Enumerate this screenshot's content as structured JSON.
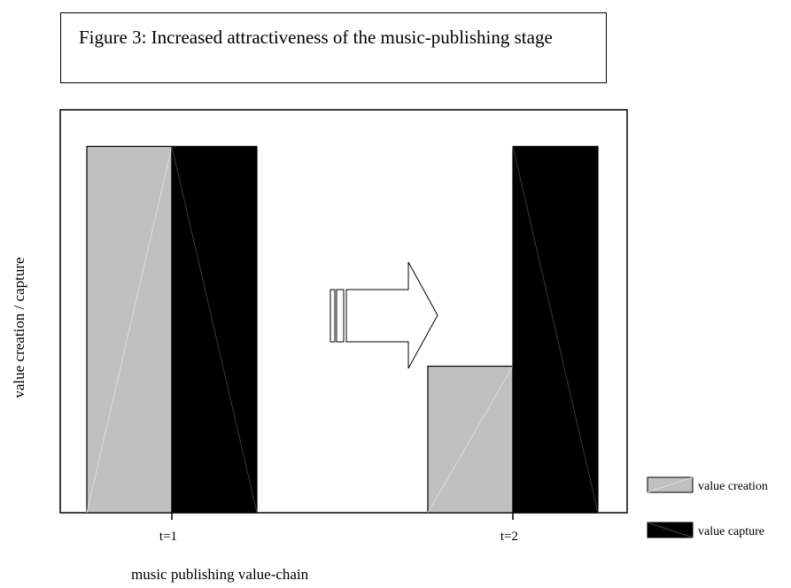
{
  "title": "Figure 3: Increased attractiveness of the music-publishing stage",
  "chart_data": {
    "type": "bar",
    "categories": [
      "t=1",
      "t=2"
    ],
    "series": [
      {
        "name": "value creation",
        "values": [
          100,
          40
        ],
        "color": "#c0c0c0"
      },
      {
        "name": "value capture",
        "values": [
          100,
          100
        ],
        "color": "#000000"
      }
    ],
    "ylabel": "value creation / capture",
    "xlabel": "music publishing value-chain",
    "ylim": [
      0,
      110
    ],
    "grid": false,
    "legend": "bottom-right",
    "annotation": "right-arrow-icon"
  }
}
